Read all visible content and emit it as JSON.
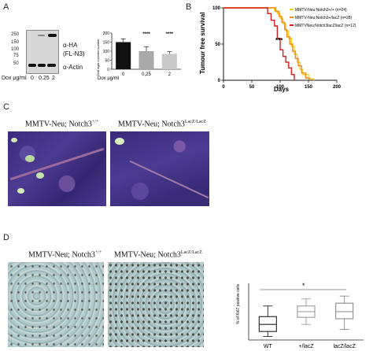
{
  "panels": {
    "A": {
      "letter": "A",
      "blot": {
        "mw_markers": [
          "250",
          "150",
          "100",
          "75",
          "50"
        ],
        "labels": [
          "α-HA",
          "(FL-N3)",
          "α-Actin"
        ],
        "dox_label": "Dox μg/ml",
        "dox_values": [
          "0",
          "0,25",
          "2"
        ]
      },
      "bar_chart": {
        "ylabel": "Soft agar colonies number",
        "xlabel": "Dox μg/ml",
        "categories": [
          "0",
          "0,25",
          "2"
        ],
        "significance": [
          "",
          "****",
          "****"
        ]
      }
    },
    "B": {
      "letter": "B",
      "ylabel": "Tumour free survival",
      "xlabel": "Days",
      "significance": "***",
      "legend": [
        "MMTV-Neu;Notch3+/+ (n=24)",
        "MMTV-Neu;Notch3+/lacZ (n=28)",
        "MMTVNeu;Notch3lacZ/lacZ (n=12)"
      ]
    },
    "C": {
      "letter": "C",
      "left_title": "MMTV-Neu; Notch3",
      "left_sup": "+/+",
      "right_title": "MMTV-Neu; Notch3",
      "right_sup": "LacZ/LacZ"
    },
    "D": {
      "letter": "D",
      "left_title": "MMTV-Neu; Notch3",
      "left_sup": "+/+",
      "right_title": "MMTV-Neu; Notch3",
      "right_sup": "LacZ/LacZ",
      "boxplot": {
        "ylabel": "% of Ki67 positive cells",
        "categories": [
          "WT",
          "+/lacZ",
          "lacZ/lacZ"
        ],
        "significance": "*"
      }
    }
  },
  "colors": {
    "wt": "#f2d21b",
    "het": "#f08a1c",
    "homo": "#d11f1f",
    "bar_dark": "#111111",
    "bar_grey": "#a9a9a9",
    "bar_light": "#c9c9c9",
    "he_purple": "#3f2f84",
    "ihc_blue": "#a9c4c9"
  },
  "chart_data": [
    {
      "type": "bar",
      "title": "",
      "xlabel": "Dox μg/ml",
      "ylabel": "Soft agar colonies number",
      "categories": [
        "0",
        "0,25",
        "2"
      ],
      "values": [
        150,
        100,
        85
      ],
      "errors": [
        18,
        25,
        12
      ],
      "ylim": [
        0,
        200
      ],
      "yticks": [
        0,
        50,
        100,
        150,
        200
      ],
      "annotations": [
        "",
        "****",
        "****"
      ]
    },
    {
      "type": "line",
      "title": "",
      "xlabel": "Days",
      "ylabel": "Tumour free survival",
      "xlim": [
        0,
        200
      ],
      "ylim": [
        0,
        100
      ],
      "xticks": [
        0,
        50,
        100,
        150,
        200
      ],
      "yticks": [
        0,
        50,
        100
      ],
      "legend_position": "top-right",
      "series": [
        {
          "name": "MMTV-Neu;Notch3+/+ (n=24)",
          "x": [
            0,
            80,
            90,
            95,
            100,
            105,
            110,
            115,
            120,
            125,
            130,
            135,
            140,
            150,
            160
          ],
          "y": [
            100,
            100,
            96,
            92,
            85,
            78,
            68,
            58,
            47,
            36,
            25,
            15,
            8,
            2,
            0
          ]
        },
        {
          "name": "MMTV-Neu;Notch3+/lacZ (n=28)",
          "x": [
            0,
            85,
            92,
            98,
            103,
            108,
            112,
            117,
            122,
            127,
            132,
            138,
            145,
            152
          ],
          "y": [
            100,
            100,
            95,
            88,
            80,
            70,
            60,
            50,
            40,
            30,
            20,
            10,
            3,
            0
          ]
        },
        {
          "name": "MMTVNeu;Notch3lacZ/lacZ (n=12)",
          "x": [
            0,
            70,
            78,
            84,
            90,
            95,
            100,
            105,
            110,
            115,
            120,
            125
          ],
          "y": [
            100,
            100,
            92,
            83,
            75,
            58,
            42,
            33,
            25,
            17,
            8,
            0
          ]
        }
      ],
      "annotations": [
        "***"
      ]
    },
    {
      "type": "box",
      "title": "",
      "xlabel": "",
      "ylabel": "% of Ki67 positive cells",
      "categories": [
        "WT",
        "+/lacZ",
        "lacZ/lacZ"
      ],
      "boxes": [
        {
          "min": 5,
          "q1": 12,
          "median": 22,
          "q3": 33,
          "max": 48
        },
        {
          "min": 22,
          "q1": 32,
          "median": 40,
          "q3": 48,
          "max": 58
        },
        {
          "min": 15,
          "q1": 30,
          "median": 40,
          "q3": 52,
          "max": 62
        }
      ],
      "ylim": [
        0,
        80
      ],
      "annotations": [
        "*"
      ]
    }
  ]
}
